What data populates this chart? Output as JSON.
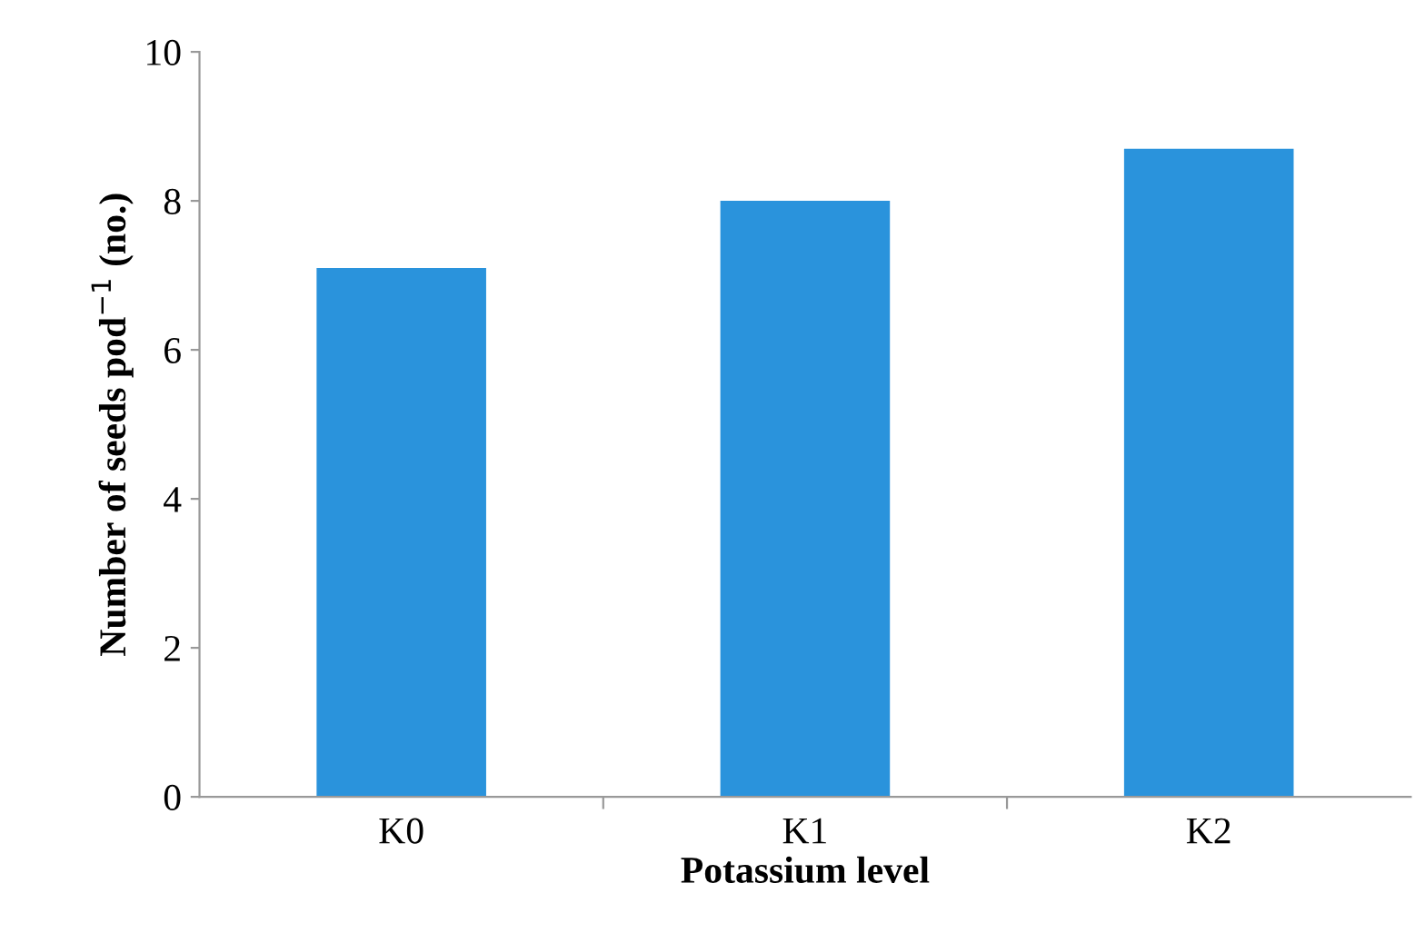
{
  "chart_data": {
    "type": "bar",
    "xlabel": "Potassium level",
    "ylabel": "Number of seeds pod$^{−1}$ (no.)",
    "categories": [
      "K0",
      "K1",
      "K2"
    ],
    "values": [
      7.1,
      8.0,
      8.7
    ],
    "color": "#2a93dc",
    "ylim": [
      0,
      10
    ],
    "yticks": [
      0,
      2,
      4,
      6,
      8,
      10
    ],
    "grid": false,
    "legend": false
  }
}
